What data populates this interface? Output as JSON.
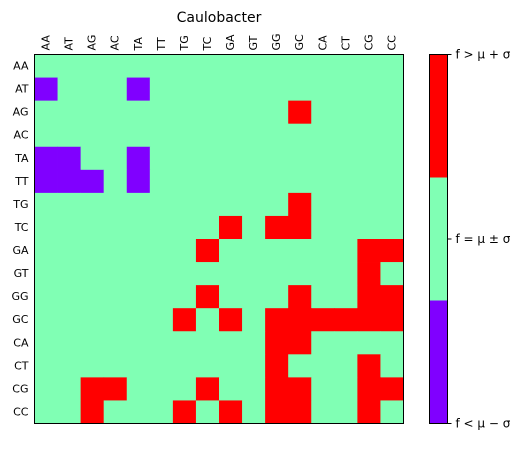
{
  "chart_data": {
    "type": "heatmap",
    "title": "Caulobacter",
    "x_labels": [
      "AA",
      "AT",
      "AG",
      "AC",
      "TA",
      "TT",
      "TG",
      "TC",
      "GA",
      "GT",
      "GG",
      "GC",
      "CA",
      "CT",
      "CG",
      "CC"
    ],
    "y_labels": [
      "AA",
      "AT",
      "AG",
      "AC",
      "TA",
      "TT",
      "TG",
      "TC",
      "GA",
      "GT",
      "GG",
      "GC",
      "CA",
      "CT",
      "CG",
      "CC"
    ],
    "x_ticks_position": "top",
    "x_tick_rotation": 90,
    "grid": false,
    "colorbar": {
      "position": "right",
      "levels": [
        -1,
        0,
        1
      ],
      "colors": {
        "-1": "#8000ff",
        "0": "#80ffb4",
        "1": "#ff0000"
      },
      "tick_labels": [
        "f < μ − σ",
        "f = μ ± σ",
        "f > μ + σ"
      ]
    },
    "values": [
      [
        0,
        0,
        0,
        0,
        0,
        0,
        0,
        0,
        0,
        0,
        0,
        0,
        0,
        0,
        0,
        0
      ],
      [
        -1,
        0,
        0,
        0,
        -1,
        0,
        0,
        0,
        0,
        0,
        0,
        0,
        0,
        0,
        0,
        0
      ],
      [
        0,
        0,
        0,
        0,
        0,
        0,
        0,
        0,
        0,
        0,
        0,
        1,
        0,
        0,
        0,
        0
      ],
      [
        0,
        0,
        0,
        0,
        0,
        0,
        0,
        0,
        0,
        0,
        0,
        0,
        0,
        0,
        0,
        0
      ],
      [
        -1,
        -1,
        0,
        0,
        -1,
        0,
        0,
        0,
        0,
        0,
        0,
        0,
        0,
        0,
        0,
        0
      ],
      [
        -1,
        -1,
        -1,
        0,
        -1,
        0,
        0,
        0,
        0,
        0,
        0,
        0,
        0,
        0,
        0,
        0
      ],
      [
        0,
        0,
        0,
        0,
        0,
        0,
        0,
        0,
        0,
        0,
        0,
        1,
        0,
        0,
        0,
        0
      ],
      [
        0,
        0,
        0,
        0,
        0,
        0,
        0,
        0,
        1,
        0,
        1,
        1,
        0,
        0,
        0,
        0
      ],
      [
        0,
        0,
        0,
        0,
        0,
        0,
        0,
        1,
        0,
        0,
        0,
        0,
        0,
        0,
        1,
        1
      ],
      [
        0,
        0,
        0,
        0,
        0,
        0,
        0,
        0,
        0,
        0,
        0,
        0,
        0,
        0,
        1,
        0
      ],
      [
        0,
        0,
        0,
        0,
        0,
        0,
        0,
        1,
        0,
        0,
        0,
        1,
        0,
        0,
        1,
        1
      ],
      [
        0,
        0,
        0,
        0,
        0,
        0,
        1,
        0,
        1,
        0,
        1,
        1,
        1,
        1,
        1,
        1
      ],
      [
        0,
        0,
        0,
        0,
        0,
        0,
        0,
        0,
        0,
        0,
        1,
        1,
        0,
        0,
        0,
        0
      ],
      [
        0,
        0,
        0,
        0,
        0,
        0,
        0,
        0,
        0,
        0,
        1,
        0,
        0,
        0,
        1,
        0
      ],
      [
        0,
        0,
        1,
        1,
        0,
        0,
        0,
        1,
        0,
        0,
        1,
        1,
        0,
        0,
        1,
        1
      ],
      [
        0,
        0,
        1,
        0,
        0,
        0,
        1,
        0,
        1,
        0,
        1,
        1,
        0,
        0,
        1,
        0
      ]
    ]
  }
}
